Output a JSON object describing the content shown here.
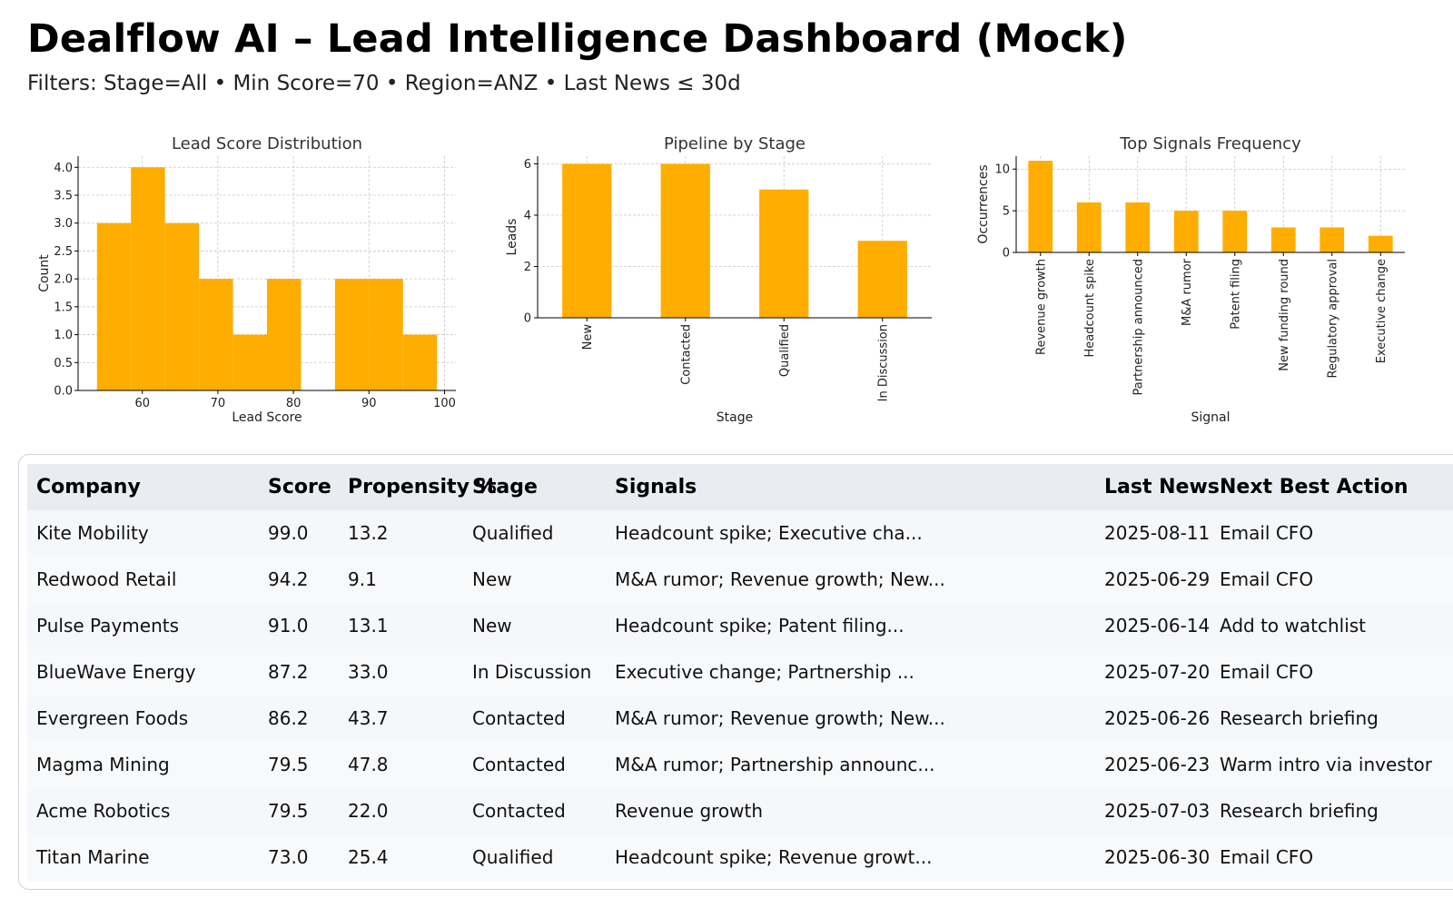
{
  "header": {
    "title": "Dealflow AI – Lead Intelligence Dashboard (Mock)",
    "filters": "Filters: Stage=All • Min Score=70 • Region=ANZ • Last News ≤ 30d"
  },
  "colors": {
    "bar": "#ffad00",
    "grid": "#c8c8c8",
    "axis": "#000000"
  },
  "chart_data": [
    {
      "type": "bar",
      "title": "Lead Score Distribution",
      "xlabel": "Lead Score",
      "ylabel": "Count",
      "bins": [
        {
          "x0": 54,
          "x1": 58.5,
          "count": 3
        },
        {
          "x0": 58.5,
          "x1": 63,
          "count": 4
        },
        {
          "x0": 63,
          "x1": 67.5,
          "count": 3
        },
        {
          "x0": 67.5,
          "x1": 72,
          "count": 2
        },
        {
          "x0": 72,
          "x1": 76.5,
          "count": 1
        },
        {
          "x0": 76.5,
          "x1": 81,
          "count": 2
        },
        {
          "x0": 81,
          "x1": 85.5,
          "count": 0
        },
        {
          "x0": 85.5,
          "x1": 90,
          "count": 2
        },
        {
          "x0": 90,
          "x1": 94.5,
          "count": 2
        },
        {
          "x0": 94.5,
          "x1": 99,
          "count": 1
        }
      ],
      "xlim": [
        51.5,
        101.5
      ],
      "ylim": [
        0,
        4.2
      ],
      "xticks": [
        60,
        70,
        80,
        90,
        100
      ],
      "yticks": [
        0,
        0.5,
        1,
        1.5,
        2,
        2.5,
        3,
        3.5,
        4
      ],
      "yticklabels": [
        "0.0",
        "0.5",
        "1.0",
        "1.5",
        "2.0",
        "2.5",
        "3.0",
        "3.5",
        "4.0"
      ],
      "grid": true
    },
    {
      "type": "bar",
      "title": "Pipeline by Stage",
      "xlabel": "Stage",
      "ylabel": "Leads",
      "categories": [
        "New",
        "Contacted",
        "Qualified",
        "In Discussion"
      ],
      "values": [
        6,
        6,
        5,
        3
      ],
      "ylim": [
        0,
        6.3
      ],
      "yticks": [
        0,
        2,
        4,
        6
      ],
      "grid": true
    },
    {
      "type": "bar",
      "title": "Top Signals Frequency",
      "xlabel": "Signal",
      "ylabel": "Occurrences",
      "categories": [
        "Revenue growth",
        "Headcount spike",
        "Partnership announced",
        "M&A rumor",
        "Patent filing",
        "New funding round",
        "Regulatory approval",
        "Executive change"
      ],
      "values": [
        11,
        6,
        6,
        5,
        5,
        3,
        3,
        2
      ],
      "ylim": [
        0,
        11.55
      ],
      "yticks": [
        0,
        5,
        10
      ],
      "grid": true
    }
  ],
  "table": {
    "columns": [
      "Company",
      "Score",
      "Propensity %",
      "Stage",
      "Signals",
      "Last News",
      "Next Best Action"
    ],
    "rows": [
      [
        "Kite Mobility",
        "99.0",
        "13.2",
        "Qualified",
        "Headcount spike; Executive cha...",
        "2025-08-11",
        "Email CFO"
      ],
      [
        "Redwood Retail",
        "94.2",
        "9.1",
        "New",
        "M&A rumor; Revenue growth; New...",
        "2025-06-29",
        "Email CFO"
      ],
      [
        "Pulse Payments",
        "91.0",
        "13.1",
        "New",
        "Headcount spike; Patent filing...",
        "2025-06-14",
        "Add to watchlist"
      ],
      [
        "BlueWave Energy",
        "87.2",
        "33.0",
        "In Discussion",
        "Executive change; Partnership ...",
        "2025-07-20",
        "Email CFO"
      ],
      [
        "Evergreen Foods",
        "86.2",
        "43.7",
        "Contacted",
        "M&A rumor; Revenue growth; New...",
        "2025-06-26",
        "Research briefing"
      ],
      [
        "Magma Mining",
        "79.5",
        "47.8",
        "Contacted",
        "M&A rumor; Partnership announc...",
        "2025-06-23",
        "Warm intro via investor"
      ],
      [
        "Acme Robotics",
        "79.5",
        "22.0",
        "Contacted",
        "Revenue growth",
        "2025-07-03",
        "Research briefing"
      ],
      [
        "Titan Marine",
        "73.0",
        "25.4",
        "Qualified",
        "Headcount spike; Revenue growt...",
        "2025-06-30",
        "Email CFO"
      ]
    ]
  }
}
